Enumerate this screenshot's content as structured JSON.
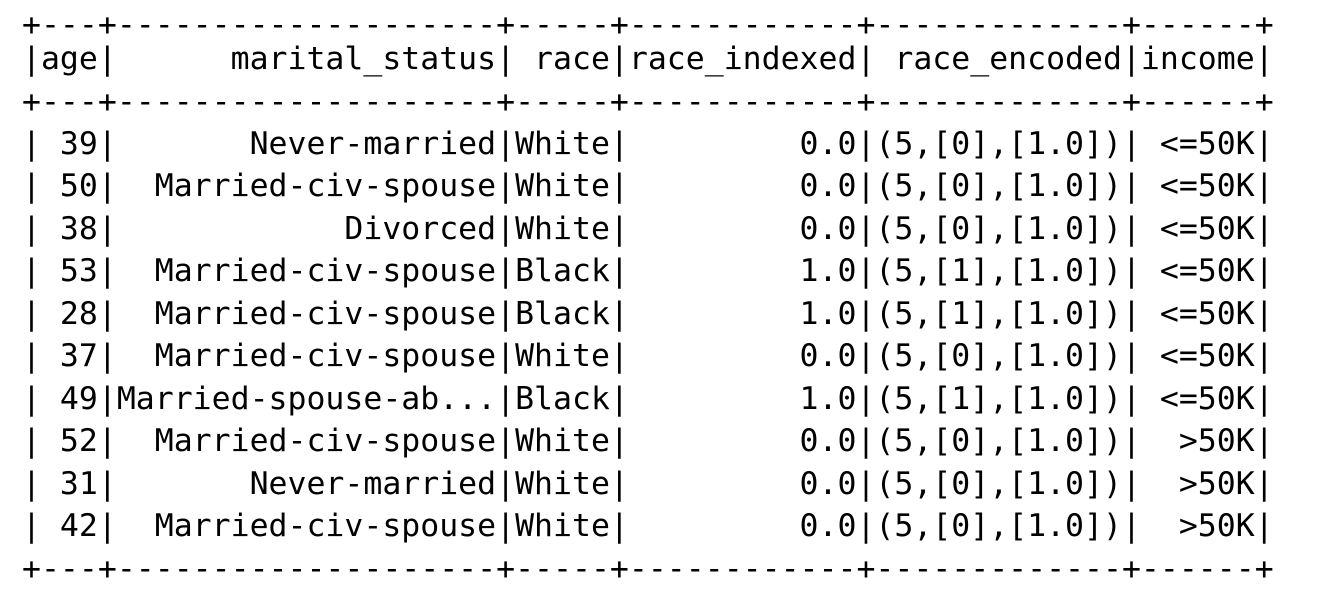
{
  "table": {
    "border": "+---+--------------------+-----+------------+-------------+------+",
    "header": "|age|      marital_status| race|race_indexed| race_encoded|income|",
    "columns": [
      "age",
      "marital_status",
      "race",
      "race_indexed",
      "race_encoded",
      "income"
    ],
    "rows": [
      "| 39|       Never-married|White|         0.0|(5,[0],[1.0])| <=50K|",
      "| 50|  Married-civ-spouse|White|         0.0|(5,[0],[1.0])| <=50K|",
      "| 38|            Divorced|White|         0.0|(5,[0],[1.0])| <=50K|",
      "| 53|  Married-civ-spouse|Black|         1.0|(5,[1],[1.0])| <=50K|",
      "| 28|  Married-civ-spouse|Black|         1.0|(5,[1],[1.0])| <=50K|",
      "| 37|  Married-civ-spouse|White|         0.0|(5,[0],[1.0])| <=50K|",
      "| 49|Married-spouse-ab...|Black|         1.0|(5,[1],[1.0])| <=50K|",
      "| 52|  Married-civ-spouse|White|         0.0|(5,[0],[1.0])|  >50K|",
      "| 31|       Never-married|White|         0.0|(5,[0],[1.0])|  >50K|",
      "| 42|  Married-civ-spouse|White|         0.0|(5,[0],[1.0])|  >50K|"
    ]
  }
}
